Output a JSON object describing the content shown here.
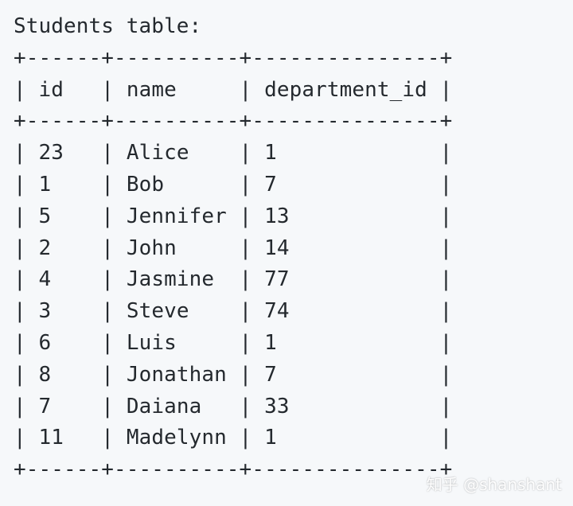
{
  "document": {
    "title": "Students table:",
    "table_border_top": "+------+----------+---------------+",
    "table_border_mid": "+------+----------+---------------+",
    "table_border_bottom": "+------+----------+---------------+",
    "columns": [
      "id",
      "name",
      "department_id"
    ],
    "rows": [
      {
        "id": "23",
        "name": "Alice",
        "department_id": "1"
      },
      {
        "id": "1",
        "name": "Bob",
        "department_id": "7"
      },
      {
        "id": "5",
        "name": "Jennifer",
        "department_id": "13"
      },
      {
        "id": "2",
        "name": "John",
        "department_id": "14"
      },
      {
        "id": "4",
        "name": "Jasmine",
        "department_id": "77"
      },
      {
        "id": "3",
        "name": "Steve",
        "department_id": "74"
      },
      {
        "id": "6",
        "name": "Luis",
        "department_id": "1"
      },
      {
        "id": "8",
        "name": "Jonathan",
        "department_id": "7"
      },
      {
        "id": "7",
        "name": "Daiana",
        "department_id": "33"
      },
      {
        "id": "11",
        "name": "Madelynn",
        "department_id": "1"
      }
    ]
  },
  "watermark": {
    "text": "知乎 @shanshant"
  }
}
